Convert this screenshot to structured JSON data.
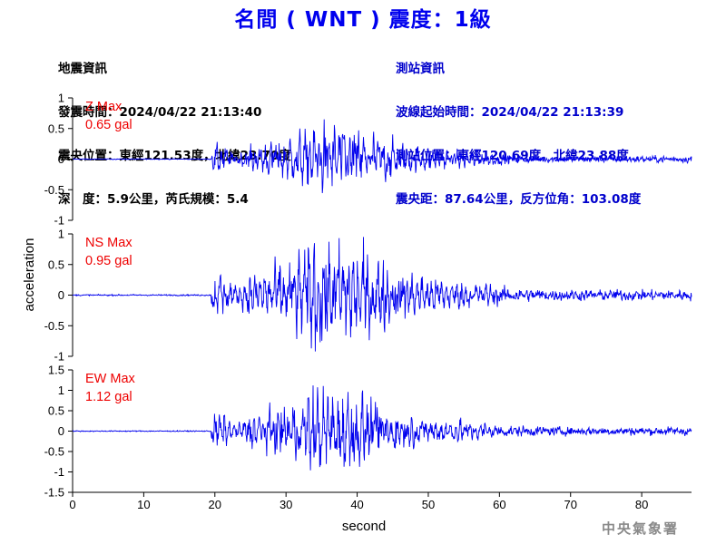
{
  "title": "名間 ( WNT ) 震度：1級",
  "quake_info": {
    "heading": "地震資訊",
    "time": "發震時間：2024/04/22 21:13:40",
    "epicenter": "震央位置：東經121.53度，北緯23.70度",
    "depth_magnitude": "深　度：5.9公里，芮氏規模：5.4"
  },
  "station_info": {
    "heading": "測站資訊",
    "wave_start": "波線起始時間：2024/04/22 21:13:39",
    "location": "測站位置：東經120.69度，北緯23.88度",
    "distance": "震央距：87.64公里，反方位角：103.08度"
  },
  "footer": "中央氣象署",
  "chart_data": {
    "type": "line",
    "xlabel": "second",
    "ylabel": "acceleration",
    "xlim": [
      0,
      87
    ],
    "xticks": [
      "0",
      "10",
      "20",
      "30",
      "40",
      "50",
      "60",
      "70",
      "80"
    ],
    "line_color": "#0000ee",
    "label_color": "#ee0000",
    "grid": false,
    "panels": [
      {
        "component": "Z",
        "max_label": "Z Max",
        "max_value": "0.65 gal",
        "peak": 0.65,
        "ylim": [
          -1,
          1
        ],
        "yticks": [
          "1",
          "0.5",
          "0",
          "-0.5",
          "-1"
        ],
        "onset_s": 19.5
      },
      {
        "component": "NS",
        "max_label": "NS Max",
        "max_value": "0.95 gal",
        "peak": 0.95,
        "ylim": [
          -1,
          1
        ],
        "yticks": [
          "1",
          "0.5",
          "0",
          "-0.5",
          "-1"
        ],
        "onset_s": 19.5
      },
      {
        "component": "EW",
        "max_label": "EW Max",
        "max_value": "1.12 gal",
        "peak": 1.12,
        "ylim": [
          -1.5,
          1.5
        ],
        "yticks": [
          "1.5",
          "1",
          "0.5",
          "0",
          "-0.5",
          "-1",
          "-1.5"
        ],
        "onset_s": 19.5
      }
    ]
  }
}
